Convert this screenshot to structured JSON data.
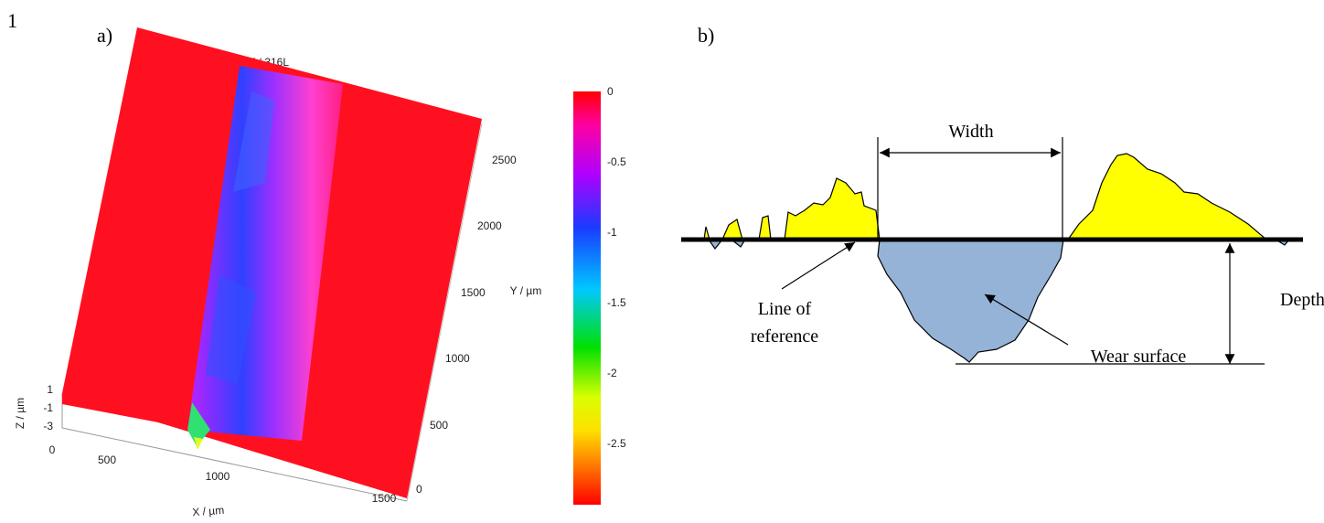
{
  "page_number": "1",
  "panel_a": {
    "label": "a)",
    "title": "PEKK CF / 316L",
    "z_axis": {
      "label": "Z / µm",
      "ticks": [
        "1",
        "-1",
        "-3"
      ]
    },
    "x_axis": {
      "label": "X / µm",
      "ticks": [
        "0",
        "500",
        "1000",
        "1500"
      ]
    },
    "y_axis": {
      "label": "Y / µm",
      "ticks": [
        "0",
        "500",
        "1000",
        "1500",
        "2000",
        "2500"
      ]
    },
    "colorbar": {
      "ticks": [
        "0",
        "-0.5",
        "-1",
        "-1.5",
        "-2",
        "-2.5"
      ]
    }
  },
  "panel_b": {
    "label": "b)",
    "width": "Width",
    "depth": "Depth",
    "reference": [
      "Line of",
      "reference"
    ],
    "wear": "Wear surface"
  }
}
